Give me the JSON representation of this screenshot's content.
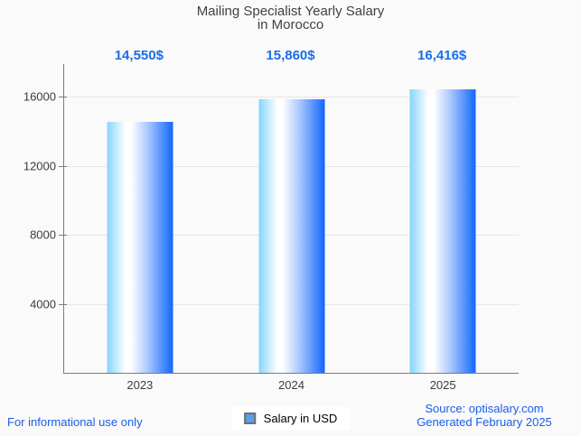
{
  "title": {
    "lines": [
      "Mailing Specialist Yearly Salary",
      "in Morocco"
    ]
  },
  "chart_data": {
    "type": "bar",
    "title": "Mailing Specialist Yearly Salary in Morocco",
    "categories": [
      "2023",
      "2024",
      "2025"
    ],
    "series": [
      {
        "name": "Salary in USD",
        "values": [
          14550,
          15860,
          16416
        ]
      }
    ],
    "value_labels": [
      "14,550$",
      "15,860$",
      "16,416$"
    ],
    "xlabel": "",
    "ylabel": "",
    "ylim": [
      0,
      17900
    ],
    "yticks": [
      4000,
      8000,
      12000,
      16000
    ],
    "grid": true,
    "legend_position": "bottom-center"
  },
  "legend": {
    "label": "Salary in USD"
  },
  "footer": {
    "disclaimer": "For informational use only",
    "source": "Source: optisalary.com",
    "generated": "Generated February 2025"
  },
  "colors": {
    "background": "#fafafa",
    "bar_gradient_start": "#86d5fb",
    "bar_gradient_mid": "#ffffff",
    "bar_gradient_end": "#1267fb",
    "value_label_text": "#1a6deb",
    "footer_text": "#1b5de8",
    "axis_line": "#7a7a80",
    "gridline": "#e7e7e7",
    "tick_label_text": "#3c3c3c",
    "title_text": "#414146",
    "legend_swatch_fill": "#57a0e8",
    "legend_swatch_border": "#6f6f6f"
  }
}
